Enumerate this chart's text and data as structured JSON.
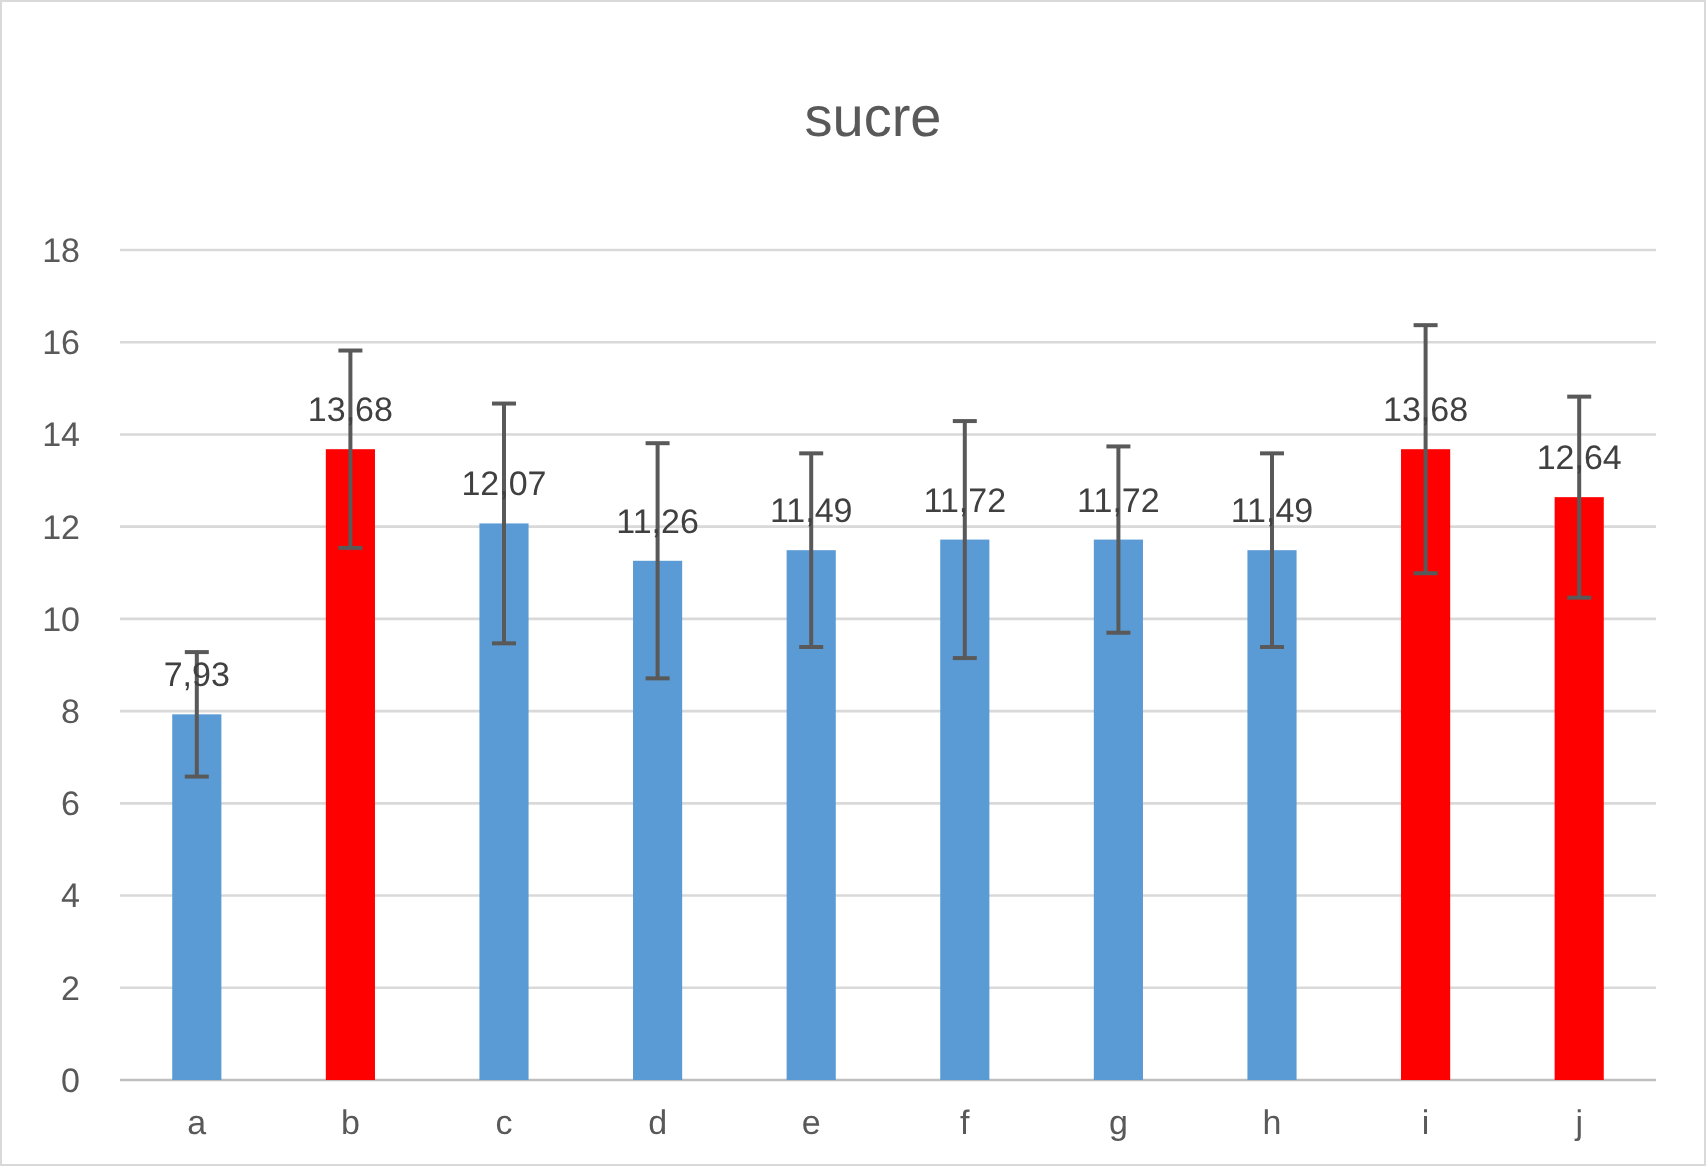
{
  "chart_data": {
    "type": "bar",
    "title": "sucre",
    "categories": [
      "a",
      "b",
      "c",
      "d",
      "e",
      "f",
      "g",
      "h",
      "i",
      "j"
    ],
    "values": [
      7.93,
      13.68,
      12.07,
      11.26,
      11.49,
      11.72,
      11.72,
      11.49,
      13.68,
      12.64
    ],
    "colors": [
      "#5b9bd5",
      "#ff0000",
      "#5b9bd5",
      "#5b9bd5",
      "#5b9bd5",
      "#5b9bd5",
      "#5b9bd5",
      "#5b9bd5",
      "#ff0000",
      "#ff0000"
    ],
    "errors": [
      1.35,
      2.14,
      2.6,
      2.55,
      2.1,
      2.57,
      2.02,
      2.1,
      2.69,
      2.18
    ],
    "value_labels": [
      "7,93",
      "13,68",
      "12,07",
      "11,26",
      "11,49",
      "11,72",
      "11,72",
      "11,49",
      "13,68",
      "12,64"
    ],
    "ylim": [
      0,
      18
    ],
    "yticks": [
      0,
      2,
      4,
      6,
      8,
      10,
      12,
      14,
      16,
      18
    ],
    "grid": "y"
  }
}
